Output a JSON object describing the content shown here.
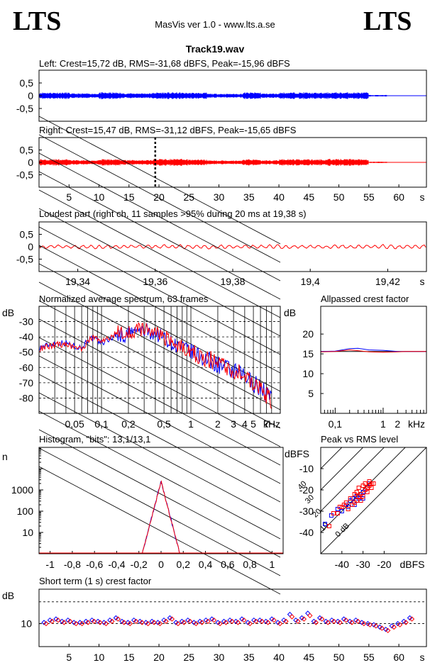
{
  "header": {
    "logo_left": "LTS",
    "logo_right": "LTS",
    "app_title": "MasVis ver 1.0 - www.lts.a.se",
    "track_title": "Track19.wav"
  },
  "chart_data": [
    {
      "id": "left-waveform",
      "type": "line",
      "title": "Left: Crest=15,72 dB, RMS=-31,68 dBFS, Peak=-15,96 dBFS",
      "ylim": [
        -1,
        1
      ],
      "xlim": [
        0,
        64.6
      ],
      "yticks": [
        "0,5",
        "0",
        "-0,5"
      ],
      "yticks_values": [
        0.5,
        0,
        -0.5
      ],
      "color": "#0000ff",
      "peak": 0.16,
      "envelope_segments": [
        {
          "x": [
            0,
            5
          ],
          "a": 0.13
        },
        {
          "x": [
            5,
            10
          ],
          "a": 0.09
        },
        {
          "x": [
            10,
            13.5
          ],
          "a": 0.13
        },
        {
          "x": [
            13.5,
            19
          ],
          "a": 0.1
        },
        {
          "x": [
            19,
            24
          ],
          "a": 0.13
        },
        {
          "x": [
            24,
            28
          ],
          "a": 0.12
        },
        {
          "x": [
            28,
            34
          ],
          "a": 0.08
        },
        {
          "x": [
            34,
            37
          ],
          "a": 0.13
        },
        {
          "x": [
            37,
            40
          ],
          "a": 0.09
        },
        {
          "x": [
            40,
            45
          ],
          "a": 0.13
        },
        {
          "x": [
            45,
            48
          ],
          "a": 0.12
        },
        {
          "x": [
            48,
            55
          ],
          "a": 0.13
        },
        {
          "x": [
            55,
            58
          ],
          "a": 0.03
        },
        {
          "x": [
            58,
            64.6
          ],
          "a": 0.01
        }
      ]
    },
    {
      "id": "right-waveform",
      "type": "line",
      "title": "Right: Crest=15,47 dB, RMS=-31,12 dBFS, Peak=-15,65 dBFS",
      "ylim": [
        -1,
        1
      ],
      "xlim": [
        0,
        64.6
      ],
      "yticks": [
        "0,5",
        "0",
        "-0,5"
      ],
      "yticks_values": [
        0.5,
        0,
        -0.5
      ],
      "xticks": [
        "5",
        "10",
        "15",
        "20",
        "25",
        "30",
        "35",
        "40",
        "45",
        "50",
        "55",
        "60",
        "s"
      ],
      "xticks_values": [
        5,
        10,
        15,
        20,
        25,
        30,
        35,
        40,
        45,
        50,
        55,
        60
      ],
      "color": "#ff0000",
      "marker_x": 19.38,
      "envelope_segments": [
        {
          "x": [
            0,
            5
          ],
          "a": 0.13
        },
        {
          "x": [
            5,
            10
          ],
          "a": 0.09
        },
        {
          "x": [
            10,
            13.5
          ],
          "a": 0.13
        },
        {
          "x": [
            13.5,
            19
          ],
          "a": 0.1
        },
        {
          "x": [
            19,
            24
          ],
          "a": 0.14
        },
        {
          "x": [
            24,
            28
          ],
          "a": 0.12
        },
        {
          "x": [
            28,
            34
          ],
          "a": 0.08
        },
        {
          "x": [
            34,
            37
          ],
          "a": 0.13
        },
        {
          "x": [
            37,
            40
          ],
          "a": 0.09
        },
        {
          "x": [
            40,
            45
          ],
          "a": 0.13
        },
        {
          "x": [
            45,
            48
          ],
          "a": 0.12
        },
        {
          "x": [
            48,
            55
          ],
          "a": 0.14
        },
        {
          "x": [
            55,
            58
          ],
          "a": 0.03
        },
        {
          "x": [
            58,
            64.6
          ],
          "a": 0.01
        }
      ]
    },
    {
      "id": "loudest-part",
      "type": "line",
      "title": "Loudest part (right ch, 11 samples >95% during 20 ms at 19,38 s)",
      "xlim": [
        19.33,
        19.43
      ],
      "ylim": [
        -1,
        1
      ],
      "yticks": [
        "0,5",
        "0",
        "-0,5"
      ],
      "yticks_values": [
        0.5,
        0,
        -0.5
      ],
      "xticks": [
        "19,34",
        "19,36",
        "19,38",
        "19,4",
        "19,42",
        "s"
      ],
      "xticks_values": [
        19.34,
        19.36,
        19.38,
        19.4,
        19.42
      ],
      "color": "#ff0000",
      "amplitude": 0.1
    },
    {
      "id": "average-spectrum",
      "type": "line",
      "title": "Normalized average spectrum, 63 frames",
      "ylabel": "dB",
      "xlabel": "kHz",
      "xscale": "log",
      "xlim": [
        0.02,
        10
      ],
      "ylim": [
        -90,
        -20
      ],
      "yticks": [
        "-30",
        "-40",
        "-50",
        "-60",
        "-70",
        "-80"
      ],
      "yticks_values": [
        -30,
        -40,
        -50,
        -60,
        -70,
        -80
      ],
      "xticks": [
        "0,05",
        "0,1",
        "0,2",
        "0,5",
        "1",
        "2",
        "3",
        "4",
        "5",
        "7",
        "kHz"
      ],
      "xticks_values": [
        0.05,
        0.1,
        0.2,
        0.5,
        1,
        2,
        3,
        4,
        5,
        7
      ],
      "series": [
        {
          "color": "#0000ff",
          "f": [
            0.02,
            0.03,
            0.04,
            0.05,
            0.06,
            0.07,
            0.08,
            0.1,
            0.12,
            0.15,
            0.18,
            0.2,
            0.25,
            0.3,
            0.4,
            0.5,
            0.6,
            0.8,
            1,
            1.5,
            2,
            3,
            4,
            5,
            6,
            7,
            8
          ],
          "db": [
            -47,
            -44,
            -44,
            -46,
            -47,
            -42,
            -41,
            -44,
            -42,
            -38,
            -40,
            -38,
            -36,
            -36,
            -38,
            -40,
            -44,
            -47,
            -50,
            -55,
            -58,
            -63,
            -66,
            -70,
            -73,
            -77,
            -81
          ]
        },
        {
          "color": "#ff0000",
          "f": [
            0.02,
            0.03,
            0.04,
            0.05,
            0.06,
            0.07,
            0.08,
            0.1,
            0.12,
            0.15,
            0.18,
            0.2,
            0.25,
            0.3,
            0.4,
            0.5,
            0.6,
            0.8,
            1,
            1.5,
            2,
            3,
            4,
            5,
            6,
            7,
            8
          ],
          "db": [
            -48,
            -45,
            -45,
            -47,
            -48,
            -43,
            -40,
            -43,
            -41,
            -37,
            -39,
            -37,
            -35,
            -36,
            -37,
            -40,
            -43,
            -46,
            -50,
            -54,
            -57,
            -62,
            -66,
            -70,
            -74,
            -78,
            -82
          ]
        }
      ]
    },
    {
      "id": "allpassed-crest",
      "type": "line",
      "title": "Allpassed crest factor",
      "ylabel": "dB",
      "xlabel": "kHz",
      "xscale": "log",
      "xlim": [
        0.05,
        8
      ],
      "ylim": [
        0,
        27
      ],
      "yticks": [
        "20",
        "15",
        "10",
        "5"
      ],
      "yticks_values": [
        20,
        15,
        10,
        5
      ],
      "xticks": [
        "0,1",
        "1",
        "2",
        "kHz"
      ],
      "xticks_values": [
        0.1,
        1,
        2
      ],
      "reference_db": 15.6,
      "series": [
        {
          "color": "#0000ff",
          "f": [
            0.05,
            0.1,
            0.2,
            0.3,
            0.5,
            1,
            2,
            3,
            8
          ],
          "db": [
            15.6,
            15.7,
            16.3,
            16.4,
            16.0,
            15.9,
            15.6,
            15.6,
            15.6
          ]
        },
        {
          "color": "#ff0000",
          "f": [
            0.05,
            0.1,
            0.2,
            0.3,
            0.5,
            1,
            2,
            3,
            8
          ],
          "db": [
            15.5,
            15.6,
            16.0,
            15.8,
            15.5,
            15.4,
            15.5,
            15.6,
            15.6
          ]
        }
      ]
    },
    {
      "id": "histogram",
      "type": "line",
      "title": "Histogram, \"bits\": 13,1/13,1",
      "ylabel": "n",
      "yscale": "log",
      "xlim": [
        -1.1,
        1.1
      ],
      "ylim": [
        1,
        100000
      ],
      "yticks": [
        "1000",
        "100",
        "10"
      ],
      "yticks_values": [
        1000,
        100,
        10
      ],
      "xticks": [
        "-1",
        "-0,8",
        "-0,6",
        "-0,4",
        "-0,2",
        "0",
        "0,2",
        "0,4",
        "0,6",
        "0,8",
        "1"
      ],
      "xticks_values": [
        -1,
        -0.8,
        -0.6,
        -0.4,
        -0.2,
        0,
        0.2,
        0.4,
        0.6,
        0.8,
        1
      ],
      "peak_count": 2500,
      "half_width": 0.17,
      "series": [
        {
          "color": "#0000ff"
        },
        {
          "color": "#ff0000"
        }
      ]
    },
    {
      "id": "peak-vs-rms",
      "type": "scatter",
      "title": "Peak vs RMS level",
      "ylabel": "dBFS",
      "xlabel": "dBFS",
      "xlim": [
        -50,
        0
      ],
      "ylim": [
        -50,
        0
      ],
      "yticks": [
        "-10",
        "-20",
        "-30",
        "-40"
      ],
      "yticks_values": [
        -10,
        -20,
        -30,
        -40
      ],
      "xticks": [
        "-40",
        "-30",
        "-20",
        "dBFS"
      ],
      "xticks_values": [
        -40,
        -30,
        -20
      ],
      "crest_lines": [
        {
          "label": "0 dB",
          "offset": 0
        },
        {
          "label": "10",
          "offset": 10
        },
        {
          "label": "20",
          "offset": 20
        },
        {
          "label": "30",
          "offset": 30
        },
        {
          "label": "40",
          "offset": 40
        }
      ],
      "series": [
        {
          "color": "#0000ff",
          "x": [
            -48,
            -45,
            -42,
            -40,
            -38,
            -37,
            -36,
            -35,
            -34,
            -33,
            -32,
            -31,
            -30,
            -30,
            -29,
            -28,
            -27
          ],
          "y": [
            -36,
            -32,
            -29,
            -30,
            -27,
            -28,
            -25,
            -24,
            -27,
            -23,
            -24,
            -22,
            -21,
            -24,
            -20,
            -19,
            -17
          ]
        },
        {
          "color": "#ff0000",
          "x": [
            -46,
            -44,
            -42,
            -41,
            -40,
            -39,
            -38,
            -37,
            -36,
            -35,
            -34,
            -34,
            -33,
            -33,
            -32,
            -32,
            -31,
            -31,
            -30,
            -30,
            -29,
            -29,
            -28,
            -28,
            -27,
            -27,
            -26,
            -26,
            -25
          ],
          "y": [
            -37,
            -31,
            -31,
            -28,
            -28,
            -27,
            -26,
            -29,
            -24,
            -27,
            -22,
            -26,
            -25,
            -21,
            -23,
            -19,
            -22,
            -25,
            -18,
            -23,
            -20,
            -17,
            -21,
            -19,
            -18,
            -16,
            -19,
            -17,
            -17
          ]
        }
      ]
    },
    {
      "id": "short-term-crest",
      "type": "scatter",
      "title": "Short term (1 s) crest factor",
      "ylabel": "dB",
      "xlim": [
        0,
        64.6
      ],
      "ylim": [
        0,
        25
      ],
      "yticks": [
        "10"
      ],
      "yticks_values": [
        10
      ],
      "xticks": [
        "5",
        "10",
        "15",
        "20",
        "25",
        "30",
        "35",
        "40",
        "45",
        "50",
        "55",
        "60",
        "s"
      ],
      "xticks_values": [
        5,
        10,
        15,
        20,
        25,
        30,
        35,
        40,
        45,
        50,
        55,
        60
      ],
      "reference_levels": [
        10,
        19.5
      ],
      "series": [
        {
          "color": "#0000ff",
          "x": [
            1,
            2,
            3,
            4,
            5,
            6,
            7,
            8,
            9,
            10,
            11,
            12,
            13,
            14,
            15,
            16,
            17,
            18,
            19,
            20,
            21,
            22,
            23,
            24,
            25,
            26,
            27,
            28,
            29,
            30,
            31,
            32,
            33,
            34,
            35,
            36,
            37,
            38,
            39,
            40,
            41,
            42,
            43,
            44,
            45,
            46,
            47,
            48,
            49,
            50,
            51,
            52,
            53,
            54,
            55,
            56,
            57,
            58,
            59,
            60,
            61,
            62
          ],
          "y": [
            10.5,
            11.5,
            12,
            11,
            11.5,
            10.5,
            10.5,
            11,
            11.5,
            11,
            10.5,
            11.5,
            12.5,
            11,
            10.5,
            11.5,
            11,
            10.5,
            11,
            10.5,
            11.5,
            12.5,
            10.5,
            11,
            11.5,
            10.5,
            11,
            11.5,
            12,
            10.5,
            11,
            11.5,
            11,
            12,
            10.5,
            11.5,
            11.5,
            11,
            12,
            10.5,
            11.5,
            14,
            11.5,
            12.5,
            14.5,
            11,
            12.5,
            11,
            11.5,
            11,
            12,
            11,
            11.5,
            10.5,
            10,
            9.5,
            8.5,
            7.5,
            9,
            10,
            11,
            12.5
          ]
        },
        {
          "color": "#ff0000",
          "x": [
            1,
            2,
            3,
            4,
            5,
            6,
            7,
            8,
            9,
            10,
            11,
            12,
            13,
            14,
            15,
            16,
            17,
            18,
            19,
            20,
            21,
            22,
            23,
            24,
            25,
            26,
            27,
            28,
            29,
            30,
            31,
            32,
            33,
            34,
            35,
            36,
            37,
            38,
            39,
            40,
            41,
            42,
            43,
            44,
            45,
            46,
            47,
            48,
            49,
            50,
            51,
            52,
            53,
            54,
            55,
            56,
            57,
            58,
            59,
            60,
            61,
            62
          ],
          "y": [
            10,
            11,
            11.5,
            10.5,
            11,
            10,
            10,
            10.5,
            11,
            10.5,
            10,
            11,
            12,
            10.5,
            10,
            11,
            10.5,
            10,
            10.5,
            10,
            11,
            12,
            10,
            10.5,
            11,
            10,
            10.5,
            11,
            11.5,
            10,
            10.5,
            11,
            10.5,
            11.5,
            10,
            11,
            11,
            10.5,
            11.5,
            10,
            11,
            13,
            11,
            12,
            13.5,
            10.5,
            12,
            10.5,
            11,
            10.5,
            11.5,
            10.5,
            11,
            10,
            9.5,
            9,
            8,
            7,
            8.5,
            9.5,
            10.5,
            12
          ]
        }
      ]
    }
  ]
}
